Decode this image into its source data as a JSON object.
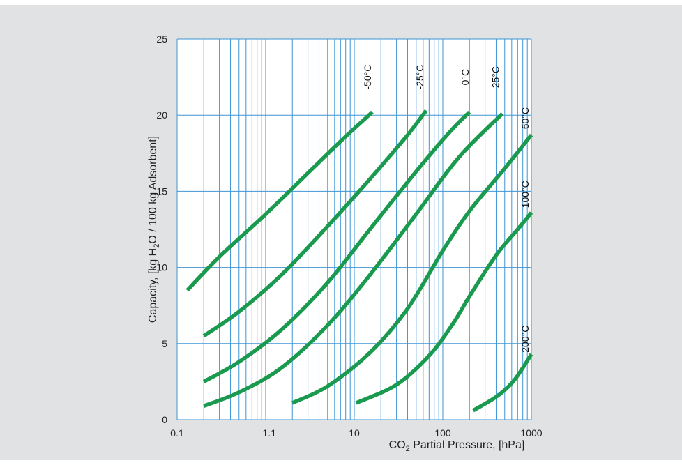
{
  "chart_data": {
    "type": "line",
    "title": "",
    "xlabel": {
      "main": "CO",
      "sub": "2",
      "rest": " Partial Pressure, [hPa]"
    },
    "ylabel": {
      "pre": "Capacity, [kg H",
      "sub": "2",
      "post": "O / 100 kg Adsorbent]"
    },
    "x_scale": "log",
    "xlim": [
      0.1,
      1000
    ],
    "ylim": [
      0,
      25
    ],
    "grid": true,
    "x_ticks": [
      {
        "value": 0.1,
        "label": "0.1"
      },
      {
        "value": 1.1,
        "label": "1.1"
      },
      {
        "value": 10,
        "label": "10"
      },
      {
        "value": 100,
        "label": "100"
      },
      {
        "value": 1000,
        "label": "1000"
      }
    ],
    "y_ticks": [
      {
        "value": 0,
        "label": "0"
      },
      {
        "value": 5,
        "label": "5"
      },
      {
        "value": 10,
        "label": "10"
      },
      {
        "value": 15,
        "label": "15"
      },
      {
        "value": 20,
        "label": "20"
      },
      {
        "value": 25,
        "label": "25"
      }
    ],
    "series": [
      {
        "name": "-50°C",
        "label_at": [
          15.5,
          22.5
        ],
        "points": [
          [
            0.13,
            8.5
          ],
          [
            0.3,
            10.7
          ],
          [
            1.0,
            13.5
          ],
          [
            3.0,
            16.2
          ],
          [
            8.0,
            18.6
          ],
          [
            16,
            20.2
          ]
        ]
      },
      {
        "name": "-25°C",
        "label_at": [
          60,
          22.5
        ],
        "points": [
          [
            0.2,
            5.5
          ],
          [
            0.5,
            7.1
          ],
          [
            1.5,
            9.5
          ],
          [
            5.0,
            12.7
          ],
          [
            15,
            15.8
          ],
          [
            40,
            18.7
          ],
          [
            65,
            20.3
          ]
        ]
      },
      {
        "name": "0°C",
        "label_at": [
          195,
          22.5
        ],
        "points": [
          [
            0.2,
            2.5
          ],
          [
            0.5,
            3.8
          ],
          [
            1.5,
            5.9
          ],
          [
            5.0,
            9.0
          ],
          [
            15,
            12.5
          ],
          [
            50,
            16.3
          ],
          [
            120,
            18.9
          ],
          [
            200,
            20.2
          ]
        ]
      },
      {
        "name": "25°C",
        "label_at": [
          430,
          22.5
        ],
        "points": [
          [
            0.2,
            0.9
          ],
          [
            0.5,
            1.8
          ],
          [
            1.5,
            3.4
          ],
          [
            5.0,
            6.2
          ],
          [
            15,
            9.5
          ],
          [
            50,
            13.5
          ],
          [
            150,
            17.2
          ],
          [
            470,
            20.1
          ]
        ]
      },
      {
        "name": "60°C",
        "label_at": [
          930,
          19.8
        ],
        "points": [
          [
            2.0,
            1.1
          ],
          [
            5.0,
            2.2
          ],
          [
            15,
            4.4
          ],
          [
            40,
            7.3
          ],
          [
            100,
            11.1
          ],
          [
            200,
            13.7
          ],
          [
            500,
            16.5
          ],
          [
            1000,
            18.7
          ]
        ]
      },
      {
        "name": "100°C",
        "label_at": [
          930,
          14.8
        ],
        "points": [
          [
            10.5,
            1.1
          ],
          [
            30,
            2.3
          ],
          [
            70,
            4.2
          ],
          [
            130,
            6.3
          ],
          [
            200,
            8.1
          ],
          [
            400,
            10.8
          ],
          [
            700,
            12.5
          ],
          [
            1000,
            13.6
          ]
        ]
      },
      {
        "name": "200°C",
        "label_at": [
          930,
          5.3
        ],
        "points": [
          [
            220,
            0.6
          ],
          [
            400,
            1.5
          ],
          [
            600,
            2.4
          ],
          [
            800,
            3.4
          ],
          [
            1000,
            4.3
          ]
        ]
      }
    ],
    "colors": {
      "curve": "#1a9a4e",
      "grid": "#3e95d5",
      "axis_text": "#222222",
      "background": "#e1e2e3"
    }
  }
}
